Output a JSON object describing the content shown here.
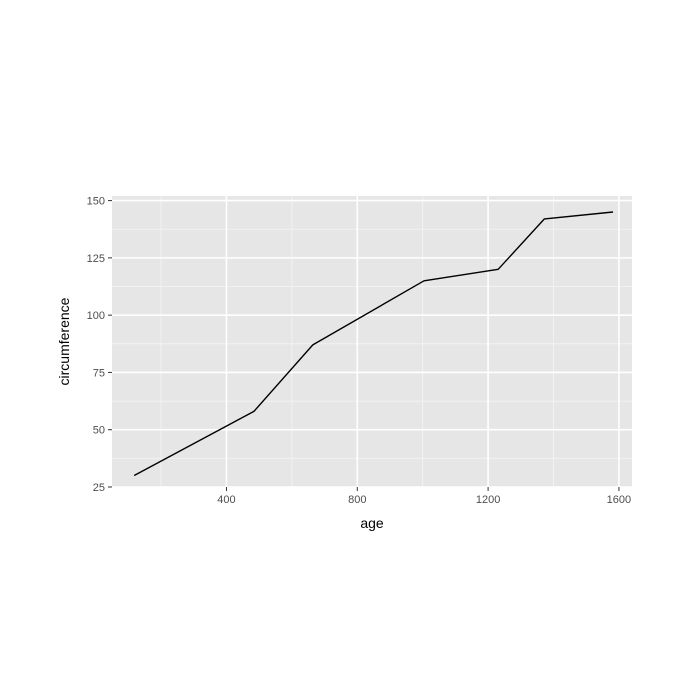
{
  "colors": {
    "panel_background": "#e6e6e6",
    "grid_major": "#ffffff",
    "grid_minor": "#f2f2f2",
    "line": "#000000",
    "tick_text": "#4d4d4d",
    "tick_mark": "#333333"
  },
  "chart_data": {
    "type": "line",
    "title": "",
    "xlabel": "age",
    "ylabel": "circumference",
    "xlim": [
      50,
      1640
    ],
    "ylim": [
      25,
      152
    ],
    "x_ticks": [
      400,
      800,
      1200,
      1600
    ],
    "x_tick_labels": [
      "400",
      "800",
      "1200",
      "1600"
    ],
    "y_ticks": [
      25,
      50,
      75,
      100,
      125,
      150
    ],
    "y_tick_labels": [
      "25",
      "50",
      "75",
      "100",
      "125",
      "150"
    ],
    "grid": true,
    "legend": "none",
    "series": [
      {
        "x": [
          118,
          484,
          664,
          1004,
          1231,
          1372,
          1582
        ],
        "y": [
          30,
          58,
          87,
          115,
          120,
          142,
          145
        ]
      }
    ]
  }
}
